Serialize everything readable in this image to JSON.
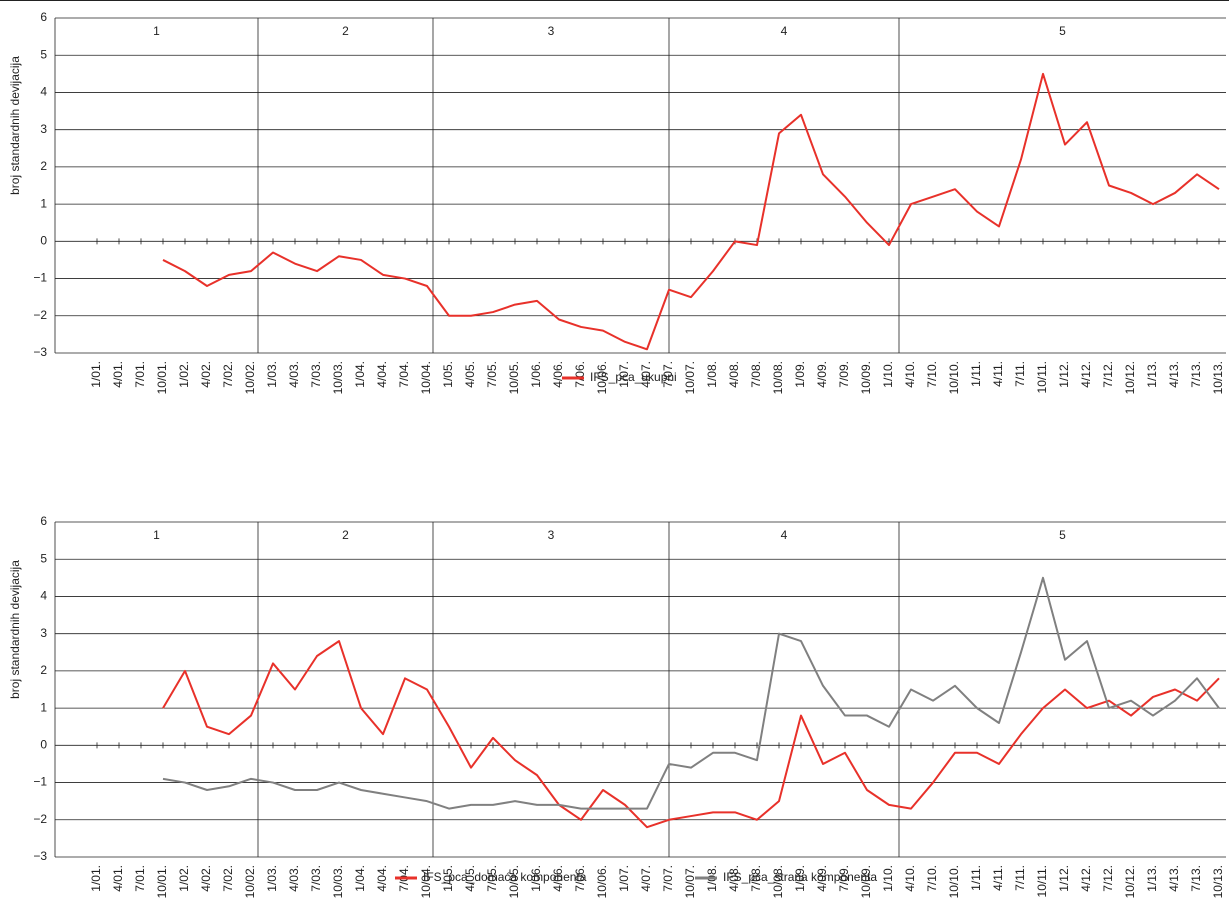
{
  "chart_data": [
    {
      "type": "line",
      "ylabel": "broj standardnih devijacija",
      "sections": [
        "1",
        "2",
        "3",
        "4",
        "5"
      ],
      "categories": [
        "1/01.",
        "4/01.",
        "7/01.",
        "10/01.",
        "1/02.",
        "4/02.",
        "7/02.",
        "10/02.",
        "1/03.",
        "4/03.",
        "7/03.",
        "10/03.",
        "1/04.",
        "4/04.",
        "7/04.",
        "10/04.",
        "1/05.",
        "4/05.",
        "7/05.",
        "10/05.",
        "1/06.",
        "4/06.",
        "7/06.",
        "10/06.",
        "1/07.",
        "4/07.",
        "7/07.",
        "10/07.",
        "1/08.",
        "4/08.",
        "7/08.",
        "10/08.",
        "1/09.",
        "4/09.",
        "7/09.",
        "10/09.",
        "1/10.",
        "4/10.",
        "7/10.",
        "10/10.",
        "1/11.",
        "4/11.",
        "7/11.",
        "10/11.",
        "1/12.",
        "4/12.",
        "7/12.",
        "10/12.",
        "1/13.",
        "4/13.",
        "7/13.",
        "10/13."
      ],
      "series": [
        {
          "name": "IFS_pca_ukupni",
          "color": "#e8312a",
          "values": [
            null,
            null,
            null,
            -0.5,
            -0.8,
            -1.2,
            -0.9,
            -0.8,
            -0.3,
            -0.6,
            -0.8,
            -0.4,
            -0.5,
            -0.9,
            -1.0,
            -1.2,
            -2.0,
            -2.0,
            -1.9,
            -1.7,
            -1.6,
            -2.1,
            -2.3,
            -2.4,
            -2.7,
            -2.9,
            -1.3,
            -1.5,
            -0.8,
            0.0,
            -0.1,
            2.9,
            3.4,
            1.8,
            1.2,
            0.5,
            -0.1,
            1.0,
            1.2,
            1.4,
            0.8,
            0.4,
            2.2,
            4.5,
            2.6,
            3.2,
            1.5,
            1.3,
            1.0,
            1.3,
            1.8,
            1.4
          ]
        }
      ],
      "ylim": [
        -3,
        6
      ],
      "yticks": [
        {
          "value": -3,
          "label": "−3"
        },
        {
          "value": -2,
          "label": "−2"
        },
        {
          "value": -1,
          "label": "−1"
        },
        0,
        1,
        2,
        3,
        4,
        5,
        6
      ],
      "grid": true
    },
    {
      "type": "line",
      "ylabel": "broj standardnih devijacija",
      "sections": [
        "1",
        "2",
        "3",
        "4",
        "5"
      ],
      "categories": [
        "1/01.",
        "4/01.",
        "7/01.",
        "10/01.",
        "1/02.",
        "4/02.",
        "7/02.",
        "10/02.",
        "1/03.",
        "4/03.",
        "7/03.",
        "10/03.",
        "1/04.",
        "4/04.",
        "7/04.",
        "10/04.",
        "1/05.",
        "4/05.",
        "7/05.",
        "10/05.",
        "1/06.",
        "4/06.",
        "7/06.",
        "10/06.",
        "1/07.",
        "4/07.",
        "7/07.",
        "10/07.",
        "1/08.",
        "4/08.",
        "7/08.",
        "10/08.",
        "1/09.",
        "4/09.",
        "7/09.",
        "10/09.",
        "1/10.",
        "4/10.",
        "7/10.",
        "10/10.",
        "1/11.",
        "4/11.",
        "7/11.",
        "10/11.",
        "1/12.",
        "4/12.",
        "7/12.",
        "10/12.",
        "1/13.",
        "4/13.",
        "7/13.",
        "10/13."
      ],
      "series": [
        {
          "name": "IFS_pca_domaća komponenta",
          "color": "#e8312a",
          "values": [
            null,
            null,
            null,
            1.0,
            2.0,
            0.5,
            0.3,
            0.8,
            2.2,
            1.5,
            2.4,
            2.8,
            1.0,
            0.3,
            1.8,
            1.5,
            0.5,
            -0.6,
            0.2,
            -0.4,
            -0.8,
            -1.6,
            -2.0,
            -1.2,
            -1.6,
            -2.2,
            -2.0,
            -1.9,
            -1.8,
            -1.8,
            -2.0,
            -1.5,
            0.8,
            -0.5,
            -0.2,
            -1.2,
            -1.6,
            -1.7,
            -1.0,
            -0.2,
            -0.2,
            -0.5,
            0.3,
            1.0,
            1.5,
            1.0,
            1.2,
            0.8,
            1.3,
            1.5,
            1.2,
            1.8
          ]
        },
        {
          "name": "IFS_pca_strana komponenta",
          "color": "#808080",
          "values": [
            null,
            null,
            null,
            -0.9,
            -1.0,
            -1.2,
            -1.1,
            -0.9,
            -1.0,
            -1.2,
            -1.2,
            -1.0,
            -1.2,
            -1.3,
            -1.4,
            -1.5,
            -1.7,
            -1.6,
            -1.6,
            -1.5,
            -1.6,
            -1.6,
            -1.7,
            -1.7,
            -1.7,
            -1.7,
            -0.5,
            -0.6,
            -0.2,
            -0.2,
            -0.4,
            3.0,
            2.8,
            1.6,
            0.8,
            0.8,
            0.5,
            1.5,
            1.2,
            1.6,
            1.0,
            0.6,
            2.5,
            4.5,
            2.3,
            2.8,
            1.0,
            1.2,
            0.8,
            1.2,
            1.8,
            1.0
          ]
        }
      ],
      "ylim": [
        -3,
        6
      ],
      "yticks": [
        {
          "value": -3,
          "label": "−3"
        },
        {
          "value": -2,
          "label": "−2"
        },
        {
          "value": -1,
          "label": "−1"
        },
        0,
        1,
        2,
        3,
        4,
        5,
        6
      ],
      "grid": true
    }
  ]
}
